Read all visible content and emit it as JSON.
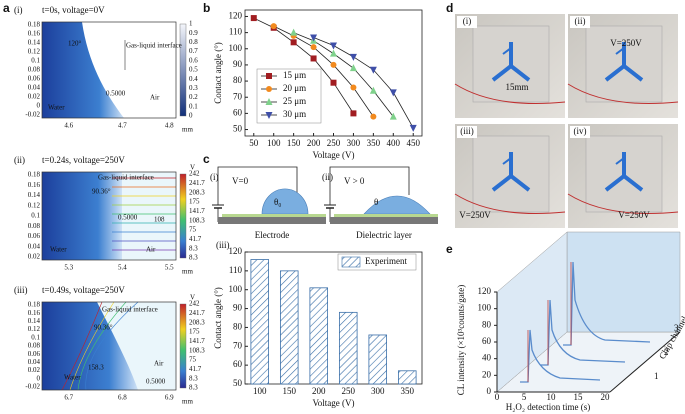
{
  "panel_a": {
    "label": "a",
    "subpanels": [
      {
        "label": "(i)",
        "title": "t=0s, voltage=0V",
        "annotations": [
          "120°",
          "Gas-liquid interface",
          "0.5000",
          "Water",
          "Air"
        ],
        "yticks": [
          "0.18",
          "0.16",
          "0.14",
          "0.12",
          "0.1",
          "0.08",
          "0.06",
          "0.04",
          "0.02",
          "0",
          "-0.02"
        ],
        "xticks": [
          "4.6",
          "4.7",
          "4.8"
        ],
        "x_unit": "mm",
        "colorbar_ticks": [
          "1",
          "0.9",
          "0.8",
          "0.7",
          "0.6",
          "0.5",
          "0.4",
          "0.3",
          "0.2",
          "0.1",
          "0"
        ]
      },
      {
        "label": "(ii)",
        "title": "t=0.24s, voltage=250V",
        "annotations": [
          "Gas-liquid interface",
          "90.36°",
          "0.5000",
          "108",
          "Water",
          "Air"
        ],
        "yticks": [
          "0.18",
          "0.16",
          "0.14",
          "0.12",
          "0.1",
          "0.08",
          "0.06",
          "0.04",
          "0.02"
        ],
        "xticks": [
          "5.3",
          "5.4",
          "5.5"
        ],
        "x_unit": "mm",
        "colorbar_title": "V",
        "colorbar_ticks": [
          "242",
          "241.7",
          "208.3",
          "175",
          "141.7",
          "108.3",
          "75",
          "41.7",
          "8.3",
          "8.3"
        ]
      },
      {
        "label": "(iii)",
        "title": "t=0.49s, voltage=250V",
        "annotations": [
          "Gas-liquid interface",
          "90.36°",
          "158.3",
          "Water",
          "Air",
          "0.5000"
        ],
        "yticks": [
          "0.18",
          "0.16",
          "0.14",
          "0.12",
          "0.1",
          "0.08",
          "0.06",
          "0.04",
          "0.02",
          "0",
          "-0.02"
        ],
        "xticks": [
          "6.7",
          "6.8",
          "6.9"
        ],
        "x_unit": "mm",
        "colorbar_title": "V",
        "colorbar_ticks": [
          "242",
          "241.7",
          "208.3",
          "175",
          "141.7",
          "108.3",
          "75",
          "41.7",
          "8.3",
          "8.3"
        ]
      }
    ]
  },
  "panel_b": {
    "label": "b"
  },
  "panel_c": {
    "label": "c",
    "schematics": [
      {
        "label": "(i)",
        "voltage": "V=0",
        "angle": "θ₀",
        "caption": "Electrode"
      },
      {
        "label": "(ii)",
        "voltage": "V > 0",
        "angle": "θ",
        "caption": "Dielectric layer"
      }
    ],
    "chart_label": "(iii)"
  },
  "panel_d": {
    "label": "d",
    "photos": [
      {
        "label": "(i)",
        "annotations": [
          "15mm"
        ]
      },
      {
        "label": "(ii)",
        "annotations": [
          "V=250V"
        ]
      },
      {
        "label": "(iii)",
        "annotations": [
          "V=250V"
        ]
      },
      {
        "label": "(iv)",
        "annotations": [
          "V=250V"
        ]
      }
    ]
  },
  "panel_e": {
    "label": "e",
    "y_label": "CL intensity (×10³counts/gate)",
    "x_label": "H₂O₂ detection time (s)",
    "z_label": "Chip channel",
    "yticks": [
      0,
      20,
      40,
      60,
      80,
      100,
      120
    ],
    "xticks": [
      0,
      5,
      10,
      15,
      20
    ],
    "zticks": [
      1,
      2,
      3
    ]
  },
  "chart_data": [
    {
      "type": "line",
      "x_label": "Voltage (V)",
      "y_label": "Contact angle (°)",
      "x": [
        50,
        100,
        150,
        200,
        250,
        300,
        350,
        400,
        450
      ],
      "series": [
        {
          "name": "15 μm",
          "color": "#a11d21",
          "marker": "square",
          "values": [
            119,
            113,
            104,
            94,
            79,
            60,
            null,
            null,
            null
          ]
        },
        {
          "name": "20 μm",
          "color": "#f28a1e",
          "marker": "circle",
          "values": [
            null,
            114,
            108,
            101,
            90,
            76,
            58,
            null,
            null
          ]
        },
        {
          "name": "25 μm",
          "color": "#7fd18b",
          "marker": "triangle-up",
          "values": [
            null,
            null,
            110,
            105,
            97,
            88,
            74,
            58,
            null
          ]
        },
        {
          "name": "30 μm",
          "color": "#3f4fa8",
          "marker": "triangle-down",
          "values": [
            null,
            null,
            null,
            107,
            102,
            95,
            87,
            73,
            51
          ]
        }
      ],
      "xlim": [
        28,
        472
      ],
      "xticks": [
        50,
        100,
        150,
        200,
        250,
        300,
        350,
        400,
        450
      ],
      "ylim": [
        46,
        124
      ],
      "yticks": [
        50,
        60,
        70,
        80,
        90,
        100,
        110,
        120
      ],
      "legend": "lower left"
    },
    {
      "type": "bar",
      "x_label": "Voltage (V)",
      "y_label": "Contact angle (°)",
      "categories": [
        "100",
        "150",
        "200",
        "250",
        "300",
        "350"
      ],
      "series": [
        {
          "name": "Experiment",
          "color": "#3a6fa8",
          "values": [
            116,
            110,
            101,
            88,
            76,
            57
          ]
        }
      ],
      "ylim": [
        50,
        120
      ],
      "yticks": [
        50,
        60,
        70,
        80,
        90,
        100,
        110,
        120
      ],
      "legend": "upper right"
    }
  ]
}
